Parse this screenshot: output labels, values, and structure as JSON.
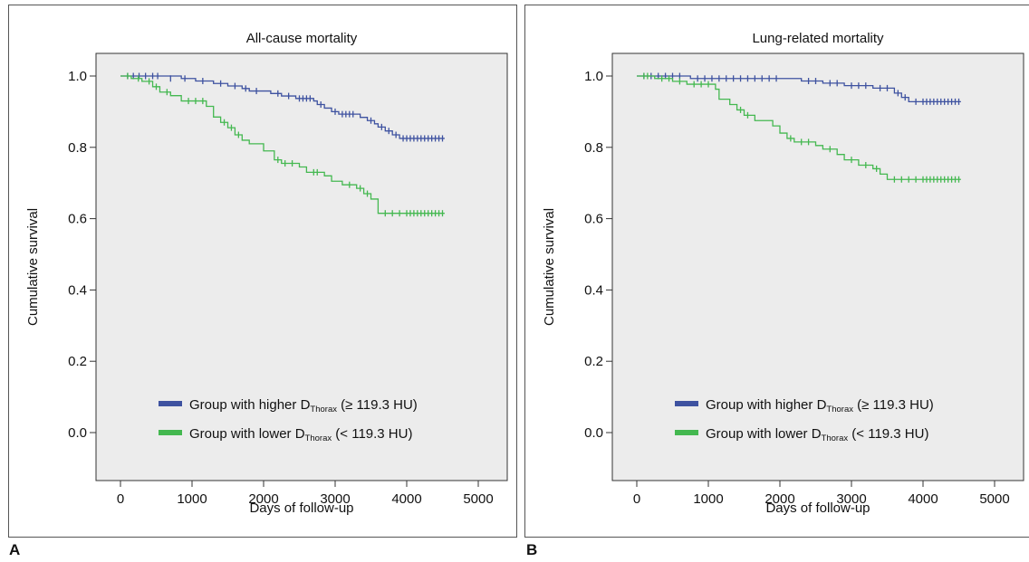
{
  "panels": [
    {
      "letter": "A"
    },
    {
      "letter": "B"
    }
  ],
  "chart_data": [
    {
      "type": "line",
      "title": "All-cause mortality",
      "xlabel": "Days of follow-up",
      "ylabel": "Cumulative survival",
      "xlim": [
        0,
        5000
      ],
      "ylim": [
        0,
        1
      ],
      "xticks": [
        0,
        1000,
        2000,
        3000,
        4000,
        5000
      ],
      "yticks": [
        0.0,
        0.2,
        0.4,
        0.6,
        0.8,
        1.0
      ],
      "grid": false,
      "legend_position": "bottom-right",
      "series": [
        {
          "name": "Group with higher DThorax (≥ 119.3 HU)",
          "legend_prefix": "Group with higher D",
          "legend_sub": "Thorax",
          "legend_suffix": " (≥ 119.3 HU)",
          "color": "#3e52a0",
          "steps": [
            [
              0,
              1.0
            ],
            [
              600,
              1.0
            ],
            [
              850,
              0.993
            ],
            [
              1050,
              0.986
            ],
            [
              1300,
              0.979
            ],
            [
              1500,
              0.972
            ],
            [
              1700,
              0.965
            ],
            [
              1800,
              0.958
            ],
            [
              2100,
              0.951
            ],
            [
              2250,
              0.944
            ],
            [
              2450,
              0.937
            ],
            [
              2700,
              0.93
            ],
            [
              2750,
              0.92
            ],
            [
              2850,
              0.91
            ],
            [
              2950,
              0.9
            ],
            [
              3050,
              0.893
            ],
            [
              3350,
              0.884
            ],
            [
              3450,
              0.875
            ],
            [
              3550,
              0.866
            ],
            [
              3600,
              0.857
            ],
            [
              3700,
              0.846
            ],
            [
              3800,
              0.835
            ],
            [
              3900,
              0.825
            ],
            [
              4530,
              0.825
            ]
          ],
          "censored": [
            [
              100,
              1.0
            ],
            [
              180,
              1.0
            ],
            [
              260,
              1.0
            ],
            [
              350,
              1.0
            ],
            [
              450,
              1.0
            ],
            [
              520,
              1.0
            ],
            [
              700,
              0.993
            ],
            [
              900,
              0.993
            ],
            [
              1150,
              0.986
            ],
            [
              1400,
              0.979
            ],
            [
              1600,
              0.972
            ],
            [
              1750,
              0.965
            ],
            [
              1900,
              0.958
            ],
            [
              2200,
              0.951
            ],
            [
              2350,
              0.944
            ],
            [
              2500,
              0.937
            ],
            [
              2550,
              0.937
            ],
            [
              2600,
              0.937
            ],
            [
              2650,
              0.937
            ],
            [
              2800,
              0.92
            ],
            [
              3000,
              0.9
            ],
            [
              3100,
              0.893
            ],
            [
              3150,
              0.893
            ],
            [
              3200,
              0.893
            ],
            [
              3250,
              0.893
            ],
            [
              3500,
              0.875
            ],
            [
              3650,
              0.857
            ],
            [
              3750,
              0.846
            ],
            [
              3850,
              0.835
            ],
            [
              3950,
              0.825
            ],
            [
              4000,
              0.825
            ],
            [
              4050,
              0.825
            ],
            [
              4100,
              0.825
            ],
            [
              4150,
              0.825
            ],
            [
              4200,
              0.825
            ],
            [
              4250,
              0.825
            ],
            [
              4300,
              0.825
            ],
            [
              4350,
              0.825
            ],
            [
              4400,
              0.825
            ],
            [
              4450,
              0.825
            ],
            [
              4500,
              0.825
            ]
          ]
        },
        {
          "name": "Group with lower DThorax (< 119.3 HU)",
          "legend_prefix": "Group with lower D",
          "legend_sub": "Thorax",
          "legend_suffix": " (< 119.3 HU)",
          "color": "#44b850",
          "steps": [
            [
              0,
              1.0
            ],
            [
              150,
              0.993
            ],
            [
              300,
              0.985
            ],
            [
              450,
              0.97
            ],
            [
              550,
              0.955
            ],
            [
              700,
              0.945
            ],
            [
              850,
              0.93
            ],
            [
              1200,
              0.915
            ],
            [
              1300,
              0.885
            ],
            [
              1400,
              0.87
            ],
            [
              1500,
              0.855
            ],
            [
              1600,
              0.835
            ],
            [
              1700,
              0.82
            ],
            [
              1800,
              0.81
            ],
            [
              2000,
              0.79
            ],
            [
              2150,
              0.765
            ],
            [
              2250,
              0.755
            ],
            [
              2500,
              0.745
            ],
            [
              2600,
              0.73
            ],
            [
              2850,
              0.72
            ],
            [
              2950,
              0.705
            ],
            [
              3100,
              0.695
            ],
            [
              3300,
              0.685
            ],
            [
              3400,
              0.67
            ],
            [
              3500,
              0.655
            ],
            [
              3600,
              0.615
            ],
            [
              4530,
              0.615
            ]
          ],
          "censored": [
            [
              100,
              1.0
            ],
            [
              250,
              0.993
            ],
            [
              400,
              0.985
            ],
            [
              500,
              0.97
            ],
            [
              650,
              0.955
            ],
            [
              950,
              0.93
            ],
            [
              1050,
              0.93
            ],
            [
              1150,
              0.93
            ],
            [
              1450,
              0.87
            ],
            [
              1550,
              0.855
            ],
            [
              1650,
              0.835
            ],
            [
              2200,
              0.765
            ],
            [
              2300,
              0.755
            ],
            [
              2400,
              0.755
            ],
            [
              2700,
              0.73
            ],
            [
              2750,
              0.73
            ],
            [
              3200,
              0.695
            ],
            [
              3350,
              0.685
            ],
            [
              3450,
              0.67
            ],
            [
              3700,
              0.615
            ],
            [
              3800,
              0.615
            ],
            [
              3900,
              0.615
            ],
            [
              4000,
              0.615
            ],
            [
              4050,
              0.615
            ],
            [
              4100,
              0.615
            ],
            [
              4150,
              0.615
            ],
            [
              4200,
              0.615
            ],
            [
              4250,
              0.615
            ],
            [
              4300,
              0.615
            ],
            [
              4350,
              0.615
            ],
            [
              4400,
              0.615
            ],
            [
              4450,
              0.615
            ],
            [
              4500,
              0.615
            ]
          ]
        }
      ]
    },
    {
      "type": "line",
      "title": "Lung-related mortality",
      "xlabel": "Days of follow-up",
      "ylabel": "Cumulative survival",
      "xlim": [
        0,
        5000
      ],
      "ylim": [
        0,
        1
      ],
      "xticks": [
        0,
        1000,
        2000,
        3000,
        4000,
        5000
      ],
      "yticks": [
        0.0,
        0.2,
        0.4,
        0.6,
        0.8,
        1.0
      ],
      "grid": false,
      "legend_position": "bottom-right",
      "series": [
        {
          "name": "Group with higher DThorax (≥ 119.3 HU)",
          "legend_prefix": "Group with higher D",
          "legend_sub": "Thorax",
          "legend_suffix": " (≥ 119.3 HU)",
          "color": "#3e52a0",
          "steps": [
            [
              0,
              1.0
            ],
            [
              700,
              1.0
            ],
            [
              750,
              0.993
            ],
            [
              2100,
              0.993
            ],
            [
              2300,
              0.986
            ],
            [
              2600,
              0.98
            ],
            [
              2900,
              0.973
            ],
            [
              3300,
              0.966
            ],
            [
              3600,
              0.952
            ],
            [
              3700,
              0.94
            ],
            [
              3800,
              0.928
            ],
            [
              4530,
              0.928
            ]
          ],
          "censored": [
            [
              100,
              1.0
            ],
            [
              200,
              1.0
            ],
            [
              300,
              1.0
            ],
            [
              400,
              1.0
            ],
            [
              500,
              1.0
            ],
            [
              600,
              1.0
            ],
            [
              850,
              0.993
            ],
            [
              950,
              0.993
            ],
            [
              1050,
              0.993
            ],
            [
              1150,
              0.993
            ],
            [
              1250,
              0.993
            ],
            [
              1350,
              0.993
            ],
            [
              1450,
              0.993
            ],
            [
              1550,
              0.993
            ],
            [
              1650,
              0.993
            ],
            [
              1750,
              0.993
            ],
            [
              1850,
              0.993
            ],
            [
              1950,
              0.993
            ],
            [
              2400,
              0.986
            ],
            [
              2500,
              0.986
            ],
            [
              2700,
              0.98
            ],
            [
              2800,
              0.98
            ],
            [
              3000,
              0.973
            ],
            [
              3100,
              0.973
            ],
            [
              3200,
              0.973
            ],
            [
              3400,
              0.966
            ],
            [
              3500,
              0.966
            ],
            [
              3650,
              0.952
            ],
            [
              3750,
              0.94
            ],
            [
              3900,
              0.928
            ],
            [
              4000,
              0.928
            ],
            [
              4050,
              0.928
            ],
            [
              4100,
              0.928
            ],
            [
              4150,
              0.928
            ],
            [
              4200,
              0.928
            ],
            [
              4250,
              0.928
            ],
            [
              4300,
              0.928
            ],
            [
              4350,
              0.928
            ],
            [
              4400,
              0.928
            ],
            [
              4450,
              0.928
            ],
            [
              4500,
              0.928
            ]
          ]
        },
        {
          "name": "Group with lower DThorax (< 119.3 HU)",
          "legend_prefix": "Group with lower D",
          "legend_sub": "Thorax",
          "legend_suffix": " (< 119.3 HU)",
          "color": "#44b850",
          "steps": [
            [
              0,
              1.0
            ],
            [
              250,
              0.993
            ],
            [
              500,
              0.985
            ],
            [
              700,
              0.977
            ],
            [
              1100,
              0.963
            ],
            [
              1150,
              0.935
            ],
            [
              1300,
              0.92
            ],
            [
              1400,
              0.905
            ],
            [
              1500,
              0.89
            ],
            [
              1650,
              0.875
            ],
            [
              1900,
              0.86
            ],
            [
              2000,
              0.84
            ],
            [
              2100,
              0.825
            ],
            [
              2200,
              0.815
            ],
            [
              2500,
              0.805
            ],
            [
              2600,
              0.795
            ],
            [
              2800,
              0.78
            ],
            [
              2900,
              0.765
            ],
            [
              3100,
              0.75
            ],
            [
              3300,
              0.74
            ],
            [
              3400,
              0.725
            ],
            [
              3500,
              0.71
            ],
            [
              4530,
              0.71
            ]
          ],
          "censored": [
            [
              100,
              1.0
            ],
            [
              150,
              1.0
            ],
            [
              350,
              0.993
            ],
            [
              450,
              0.993
            ],
            [
              600,
              0.985
            ],
            [
              800,
              0.977
            ],
            [
              900,
              0.977
            ],
            [
              1000,
              0.977
            ],
            [
              1450,
              0.905
            ],
            [
              1550,
              0.89
            ],
            [
              2150,
              0.825
            ],
            [
              2300,
              0.815
            ],
            [
              2400,
              0.815
            ],
            [
              2700,
              0.795
            ],
            [
              3000,
              0.765
            ],
            [
              3200,
              0.75
            ],
            [
              3350,
              0.74
            ],
            [
              3600,
              0.71
            ],
            [
              3700,
              0.71
            ],
            [
              3800,
              0.71
            ],
            [
              3900,
              0.71
            ],
            [
              4000,
              0.71
            ],
            [
              4050,
              0.71
            ],
            [
              4100,
              0.71
            ],
            [
              4150,
              0.71
            ],
            [
              4200,
              0.71
            ],
            [
              4250,
              0.71
            ],
            [
              4300,
              0.71
            ],
            [
              4350,
              0.71
            ],
            [
              4400,
              0.71
            ],
            [
              4450,
              0.71
            ],
            [
              4500,
              0.71
            ]
          ]
        }
      ]
    }
  ]
}
